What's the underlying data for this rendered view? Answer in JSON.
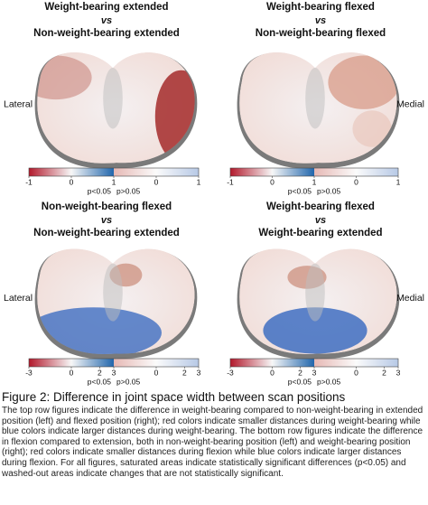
{
  "figure": {
    "panels": [
      {
        "title_1": "Weight-bearing extended",
        "vs": "vs",
        "title_2": "Non-weight-bearing extended",
        "side_label": "Lateral",
        "colorbar": {
          "significant_ticks": [
            "-1",
            "0",
            "1"
          ],
          "nonsignificant_ticks": [
            "0",
            "1"
          ],
          "significant_label": "p<0.05",
          "nonsignificant_label": "p>0.05"
        }
      },
      {
        "title_1": "Weight-bearing flexed",
        "vs": "vs",
        "title_2": "Non-weight-bearing flexed",
        "side_label": "Medial",
        "colorbar": {
          "significant_ticks": [
            "-1",
            "0",
            "1"
          ],
          "nonsignificant_ticks": [
            "0",
            "1"
          ],
          "significant_label": "p<0.05",
          "nonsignificant_label": "p>0.05"
        }
      },
      {
        "title_1": "Non-weight-bearing flexed",
        "vs": "vs",
        "title_2": "Non-weight-bearing extended",
        "side_label": "Lateral",
        "colorbar": {
          "significant_ticks": [
            "-3",
            "0",
            "2",
            "3"
          ],
          "nonsignificant_ticks": [
            "0",
            "2",
            "3"
          ],
          "significant_label": "p<0.05",
          "nonsignificant_label": "p>0.05"
        }
      },
      {
        "title_1": "Weight-bearing flexed",
        "vs": "vs",
        "title_2": "Weight-bearing extended",
        "side_label": "Medial",
        "colorbar": {
          "significant_ticks": [
            "-3",
            "0",
            "2",
            "3"
          ],
          "nonsignificant_ticks": [
            "0",
            "2",
            "3"
          ],
          "significant_label": "p<0.05",
          "nonsignificant_label": "p>0.05"
        }
      }
    ],
    "caption": {
      "title": "Figure 2: Difference in joint space width between scan positions",
      "text": "The top row figures indicate the difference in weight-bearing compared to non-weight-bearing in extended position (left) and flexed position (right); red colors indicate smaller distances during weight-bearing while blue colors indicate larger distances during weight-bearing. The bottom row figures indicate the difference in flexion compared to extension, both in non-weight-bearing position (left) and weight-bearing position (right); red colors indicate smaller distances during flexion while blue colors indicate larger distances during flexion. For all figures, saturated areas indicate statistically significant differences (p<0.05) and washed-out areas indicate changes that are not statistically significant."
    }
  }
}
